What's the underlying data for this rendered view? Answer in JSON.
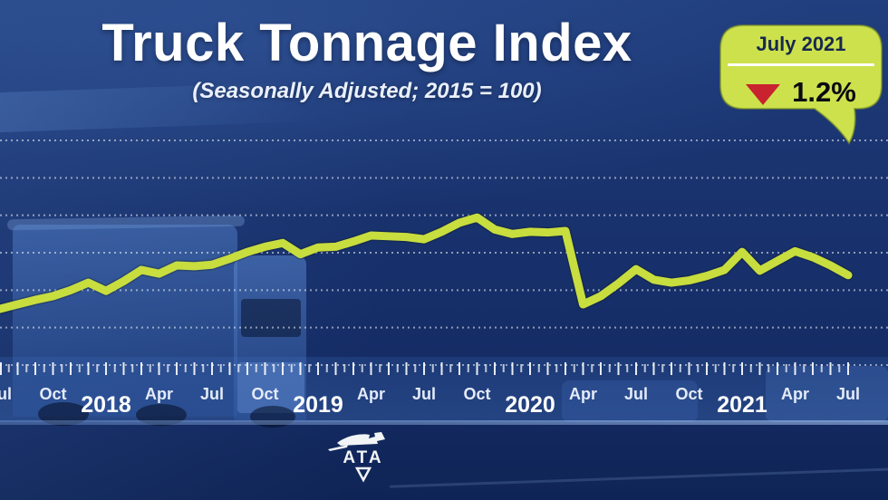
{
  "header": {
    "title": "Truck Tonnage Index",
    "subtitle": "(Seasonally Adjusted; 2015 = 100)"
  },
  "callout": {
    "period": "July 2021",
    "change": "1.2%",
    "direction": "down",
    "bubble_color": "#cde14d",
    "arrow_color": "#c8232f"
  },
  "logo": {
    "text": "ATA"
  },
  "chart_data": {
    "type": "line",
    "title": "Truck Tonnage Index",
    "subtitle": "(Seasonally Adjusted; 2015 = 100)",
    "x_start": "Jul 2017",
    "x_end": "Jul 2021",
    "x_interval": "month",
    "x": [
      "Jul 2017",
      "Aug 2017",
      "Sep 2017",
      "Oct 2017",
      "Nov 2017",
      "Dec 2017",
      "Jan 2018",
      "Feb 2018",
      "Mar 2018",
      "Apr 2018",
      "May 2018",
      "Jun 2018",
      "Jul 2018",
      "Aug 2018",
      "Sep 2018",
      "Oct 2018",
      "Nov 2018",
      "Dec 2018",
      "Jan 2019",
      "Feb 2019",
      "Mar 2019",
      "Apr 2019",
      "May 2019",
      "Jun 2019",
      "Jul 2019",
      "Aug 2019",
      "Sep 2019",
      "Oct 2019",
      "Nov 2019",
      "Dec 2019",
      "Jan 2020",
      "Feb 2020",
      "Mar 2020",
      "Apr 2020",
      "May 2020",
      "Jun 2020",
      "Jul 2020",
      "Aug 2020",
      "Sep 2020",
      "Oct 2020",
      "Nov 2020",
      "Dec 2020",
      "Jan 2021",
      "Feb 2021",
      "Mar 2021",
      "Apr 2021",
      "May 2021",
      "Jun 2021",
      "Jul 2021"
    ],
    "series": [
      {
        "name": "Truck Tonnage Index (seasonally adjusted, 2015 = 100)",
        "color": "#c8dd3e",
        "values": [
          103.5,
          104.1,
          104.7,
          105.2,
          106.0,
          107.0,
          105.9,
          107.2,
          108.7,
          108.2,
          109.3,
          109.2,
          109.4,
          110.2,
          111.1,
          111.8,
          112.3,
          110.8,
          111.7,
          111.8,
          112.5,
          113.3,
          113.2,
          113.1,
          112.8,
          113.8,
          115.0,
          115.7,
          114.1,
          113.5,
          113.8,
          113.7,
          113.9,
          104.1,
          105.2,
          106.9,
          108.8,
          107.4,
          107.0,
          107.3,
          107.9,
          108.7,
          111.1,
          108.6,
          109.9,
          111.2,
          110.4,
          109.3,
          108.0
        ]
      }
    ],
    "x_ticks": [
      {
        "label": "Jul",
        "month": 0,
        "kind": "month"
      },
      {
        "label": "Oct",
        "month": 3,
        "kind": "month"
      },
      {
        "label": "2018",
        "month": 6,
        "kind": "year"
      },
      {
        "label": "Apr",
        "month": 9,
        "kind": "month"
      },
      {
        "label": "Jul",
        "month": 12,
        "kind": "month"
      },
      {
        "label": "Oct",
        "month": 15,
        "kind": "month"
      },
      {
        "label": "2019",
        "month": 18,
        "kind": "year"
      },
      {
        "label": "Apr",
        "month": 21,
        "kind": "month"
      },
      {
        "label": "Jul",
        "month": 24,
        "kind": "month"
      },
      {
        "label": "Oct",
        "month": 27,
        "kind": "month"
      },
      {
        "label": "2020",
        "month": 30,
        "kind": "year"
      },
      {
        "label": "Apr",
        "month": 33,
        "kind": "month"
      },
      {
        "label": "Jul",
        "month": 36,
        "kind": "month"
      },
      {
        "label": "Oct",
        "month": 39,
        "kind": "month"
      },
      {
        "label": "2021",
        "month": 42,
        "kind": "year"
      },
      {
        "label": "Apr",
        "month": 45,
        "kind": "month"
      },
      {
        "label": "Jul",
        "month": 48,
        "kind": "month"
      }
    ],
    "y_axis": {
      "labels_visible": false,
      "ylim": [
        96,
        126
      ],
      "gridlines": 7,
      "gridline_style": "dotted"
    },
    "legend": "none",
    "annotations": [
      {
        "label": "July 2021",
        "value_change_pct": -1.2
      }
    ]
  }
}
